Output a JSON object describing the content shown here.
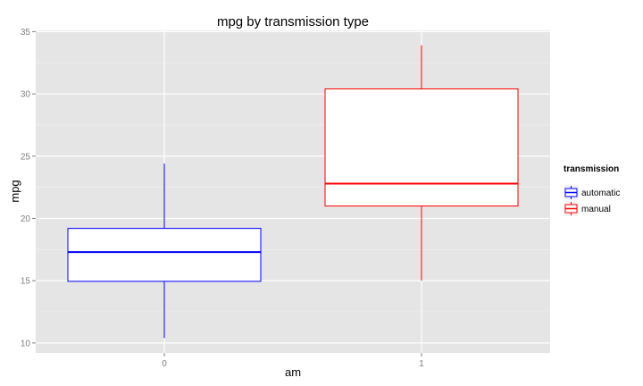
{
  "chart_data": {
    "type": "boxplot",
    "title": "mpg by transmission type",
    "xlabel": "am",
    "ylabel": "mpg",
    "categories": [
      "0",
      "1"
    ],
    "ylim": [
      9.2,
      35.1
    ],
    "yticks": [
      10,
      15,
      20,
      25,
      30,
      35
    ],
    "grid": true,
    "legend_position": "right",
    "legend_title": "transmission",
    "series": [
      {
        "name": "automatic",
        "category": "0",
        "color": "#0000ff",
        "min": 10.4,
        "q1": 14.95,
        "median": 17.3,
        "q3": 19.2,
        "max": 24.4
      },
      {
        "name": "manual",
        "category": "1",
        "color": "#ff0000",
        "min": 15.0,
        "q1": 21.0,
        "median": 22.8,
        "q3": 30.4,
        "max": 33.9
      }
    ]
  }
}
